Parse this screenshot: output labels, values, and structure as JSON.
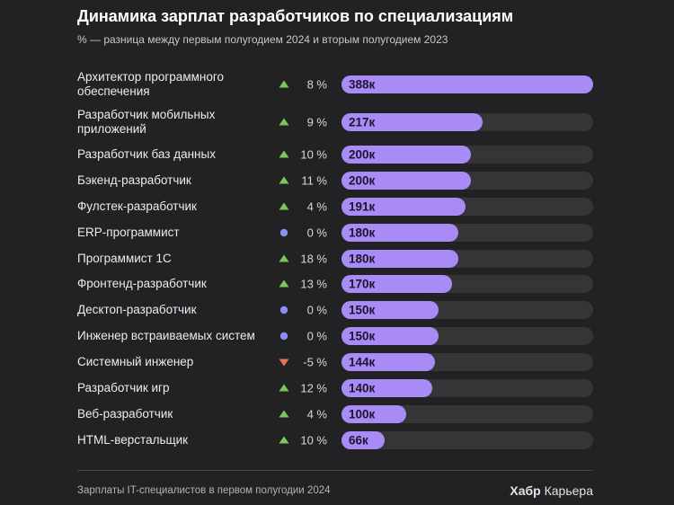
{
  "header": {
    "title": "Динамика зарплат разработчиков по специализациям",
    "subtitle": "% — разница между первым полугодием 2024 и вторым полугодием 2023"
  },
  "footer": {
    "note": "Зарплаты IT-специалистов в первом полугодии 2024",
    "brand_bold": "Хабр",
    "brand_rest": "Карьера"
  },
  "colors": {
    "bar": "#a98bf5",
    "track": "#353538",
    "up": "#7bc75a",
    "flat": "#8b8df0",
    "down": "#e8735a"
  },
  "chart_data": {
    "type": "bar",
    "orientation": "horizontal",
    "title": "Динамика зарплат разработчиков по специализациям",
    "subtitle": "% — разница между первым полугодием 2024 и вторым полугодием 2023",
    "xlim": [
      0,
      388
    ],
    "grid": false,
    "rows": [
      {
        "category": "Архитектор программного обеспечения",
        "value": 388,
        "value_label": "388к",
        "change": 8,
        "change_label": "8 %",
        "trend": "up"
      },
      {
        "category": "Разработчик мобильных приложений",
        "value": 217,
        "value_label": "217к",
        "change": 9,
        "change_label": "9 %",
        "trend": "up"
      },
      {
        "category": "Разработчик баз данных",
        "value": 200,
        "value_label": "200к",
        "change": 10,
        "change_label": "10 %",
        "trend": "up"
      },
      {
        "category": "Бэкенд-разработчик",
        "value": 200,
        "value_label": "200к",
        "change": 11,
        "change_label": "11 %",
        "trend": "up"
      },
      {
        "category": "Фулстек-разработчик",
        "value": 191,
        "value_label": "191к",
        "change": 4,
        "change_label": "4 %",
        "trend": "up"
      },
      {
        "category": "ERP-программист",
        "value": 180,
        "value_label": "180к",
        "change": 0,
        "change_label": "0 %",
        "trend": "flat"
      },
      {
        "category": "Программист 1С",
        "value": 180,
        "value_label": "180к",
        "change": 18,
        "change_label": "18 %",
        "trend": "up"
      },
      {
        "category": "Фронтенд-разработчик",
        "value": 170,
        "value_label": "170к",
        "change": 13,
        "change_label": "13 %",
        "trend": "up"
      },
      {
        "category": "Десктоп-разработчик",
        "value": 150,
        "value_label": "150к",
        "change": 0,
        "change_label": "0 %",
        "trend": "flat"
      },
      {
        "category": "Инженер встраиваемых систем",
        "value": 150,
        "value_label": "150к",
        "change": 0,
        "change_label": "0 %",
        "trend": "flat"
      },
      {
        "category": "Системный инженер",
        "value": 144,
        "value_label": "144к",
        "change": -5,
        "change_label": "-5 %",
        "trend": "down"
      },
      {
        "category": "Разработчик игр",
        "value": 140,
        "value_label": "140к",
        "change": 12,
        "change_label": "12 %",
        "trend": "up"
      },
      {
        "category": "Веб-разработчик",
        "value": 100,
        "value_label": "100к",
        "change": 4,
        "change_label": "4 %",
        "trend": "up"
      },
      {
        "category": "HTML-верстальщик",
        "value": 66,
        "value_label": "66к",
        "change": 10,
        "change_label": "10 %",
        "trend": "up"
      }
    ]
  }
}
